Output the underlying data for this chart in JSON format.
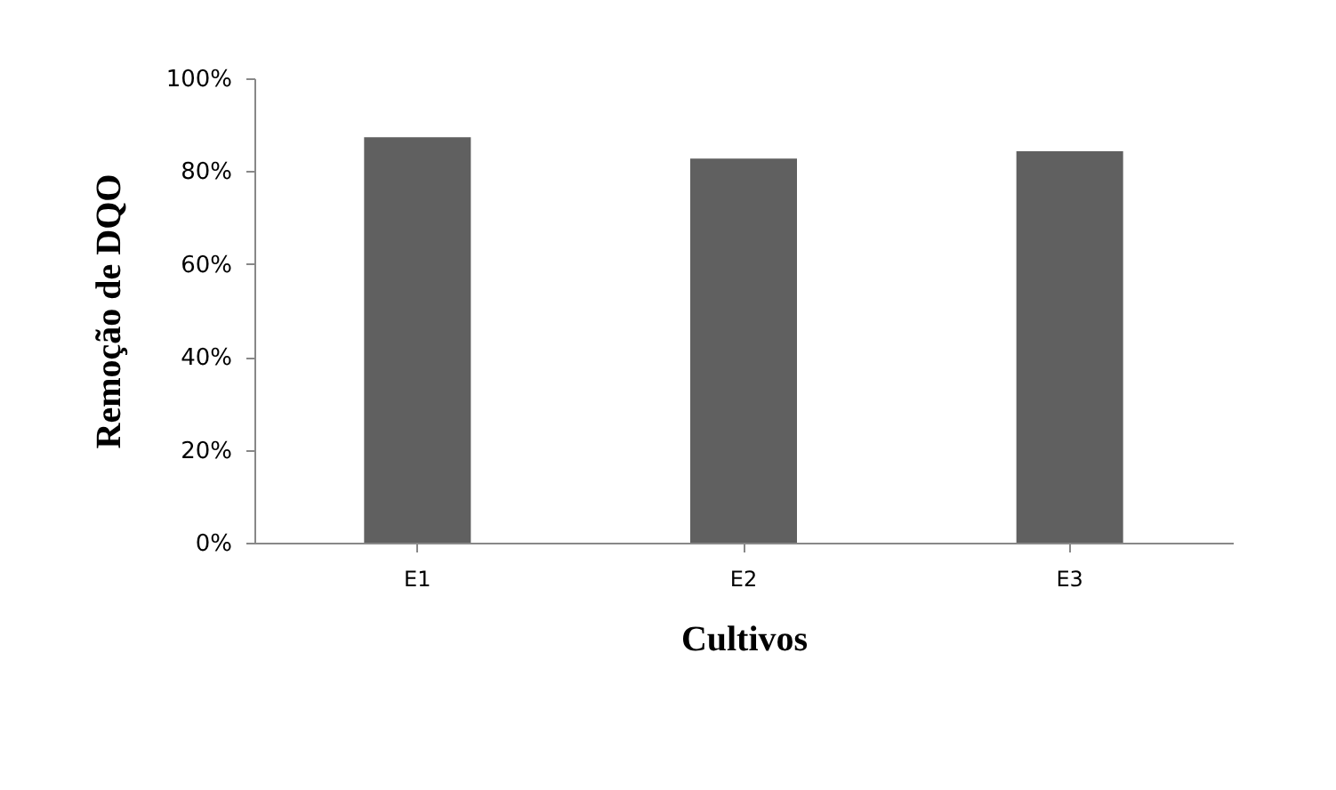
{
  "chart_data": {
    "type": "bar",
    "xlabel": "Cultivos",
    "ylabel": "Remoção de DQO",
    "categories": [
      "E1",
      "E2",
      "E3"
    ],
    "values": [
      87.3,
      82.7,
      84.3
    ],
    "color": "#606060",
    "ylim": [
      0,
      100
    ],
    "yticks": [
      {
        "value": 0,
        "label": "0%"
      },
      {
        "value": 20,
        "label": "20%"
      },
      {
        "value": 40,
        "label": "40%"
      },
      {
        "value": 60,
        "label": "60%"
      },
      {
        "value": 80,
        "label": "80%"
      },
      {
        "value": 100,
        "label": "100%"
      }
    ],
    "grid": false
  }
}
